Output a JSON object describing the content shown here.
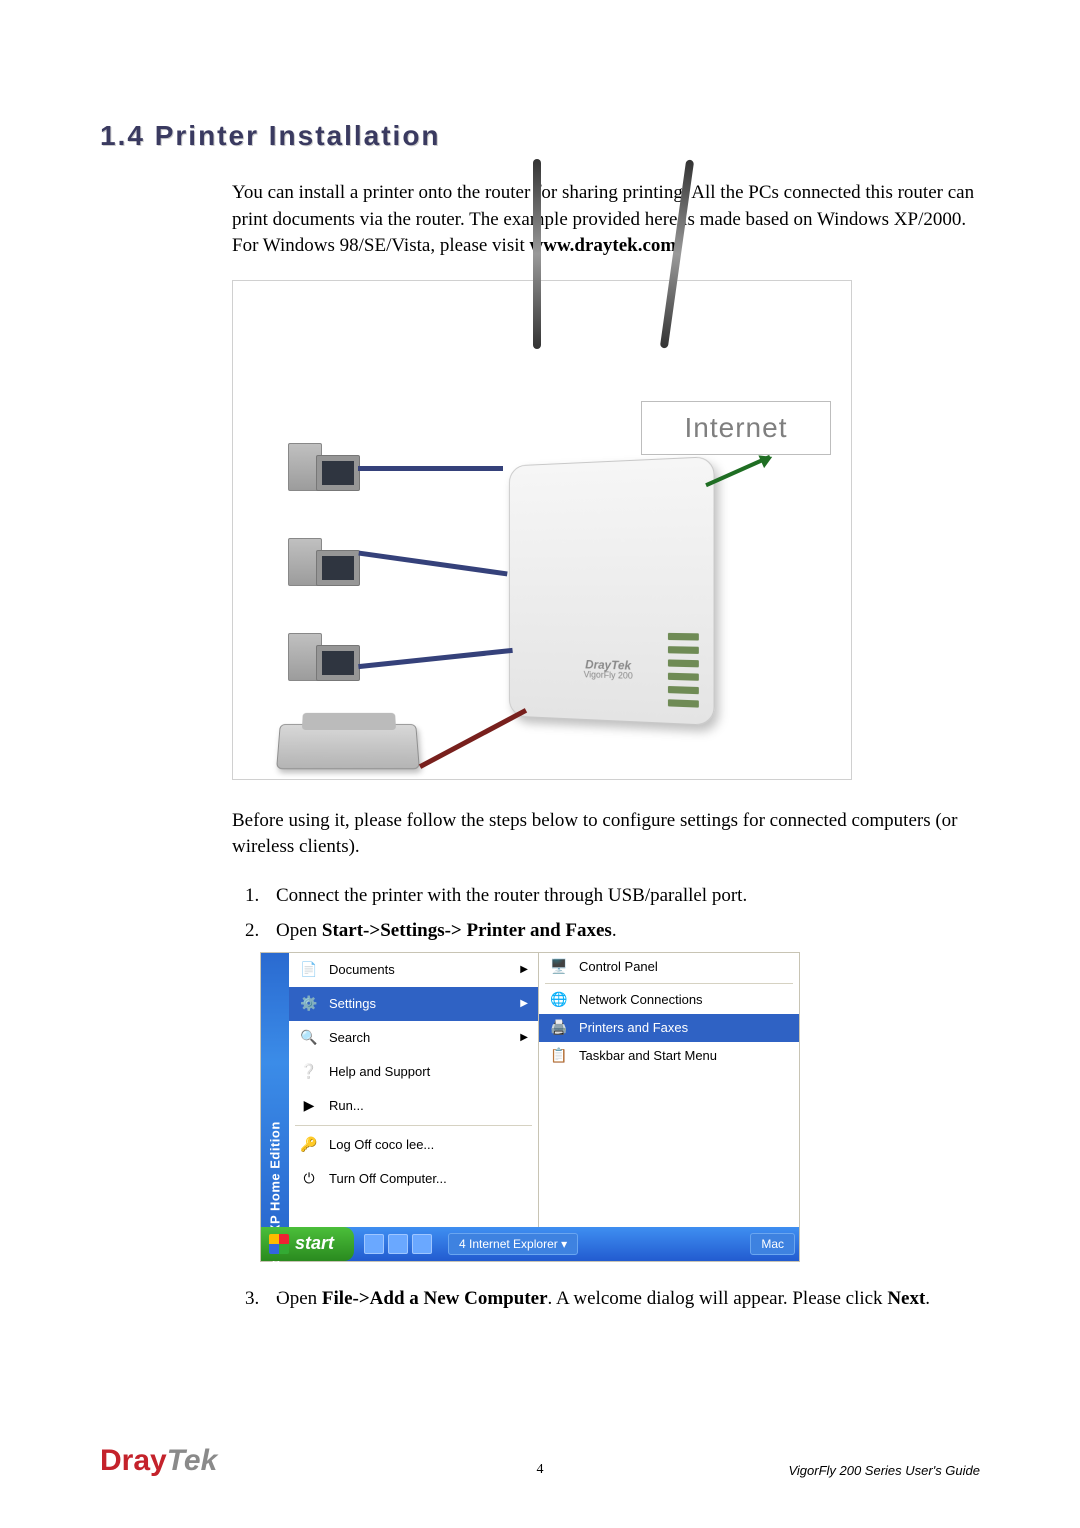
{
  "section_number": "1.4",
  "section_title": "Printer Installation",
  "intro_a": "You can install a printer onto the router for sharing printing. All the PCs connected this router can print documents via the router. The example provided here is made based on Windows XP/2000. For Windows 98/SE/Vista, please visit ",
  "intro_url": "www.draytek.com",
  "intro_b": ".",
  "diagram": {
    "internet_label": "Internet",
    "router_brand": "DrayTek",
    "router_model": "VigorFly 200"
  },
  "pre_steps": "Before using it, please follow the steps below to configure settings for connected computers (or wireless clients).",
  "steps": {
    "s1": "Connect the printer with the router through USB/parallel port.",
    "s2_a": "Open ",
    "s2_b": "Start->Settings-> Printer and Faxes",
    "s2_c": ".",
    "s3_a": "Open ",
    "s3_b": "File->Add a New Computer",
    "s3_c": ". A welcome dialog will appear. Please click ",
    "s3_d": "Next",
    "s3_e": "."
  },
  "startmenu": {
    "sidebar_text": "Windows XP  Home Edition",
    "items": {
      "documents": "Documents",
      "settings": "Settings",
      "search": "Search",
      "help": "Help and Support",
      "run": "Run...",
      "logoff": "Log Off coco lee...",
      "turnoff": "Turn Off Computer..."
    },
    "sub": {
      "control_panel": "Control Panel",
      "network": "Network Connections",
      "printers": "Printers and Faxes",
      "taskbar": "Taskbar and Start Menu"
    },
    "taskbar": {
      "start": "start",
      "task1": "4 Internet Explorer",
      "right": "Mac"
    }
  },
  "footer": {
    "brand_a": "Dray",
    "brand_b": "Tek",
    "page": "4",
    "guide": "VigorFly 200 Series User's Guide"
  },
  "colors": {
    "heading": "#3a3a60",
    "wire_blue": "#35417a",
    "wire_red": "#78201d",
    "xp_blue": "#2f62c4",
    "brand_red": "#c4222b",
    "brand_gray": "#8a8a8a"
  }
}
